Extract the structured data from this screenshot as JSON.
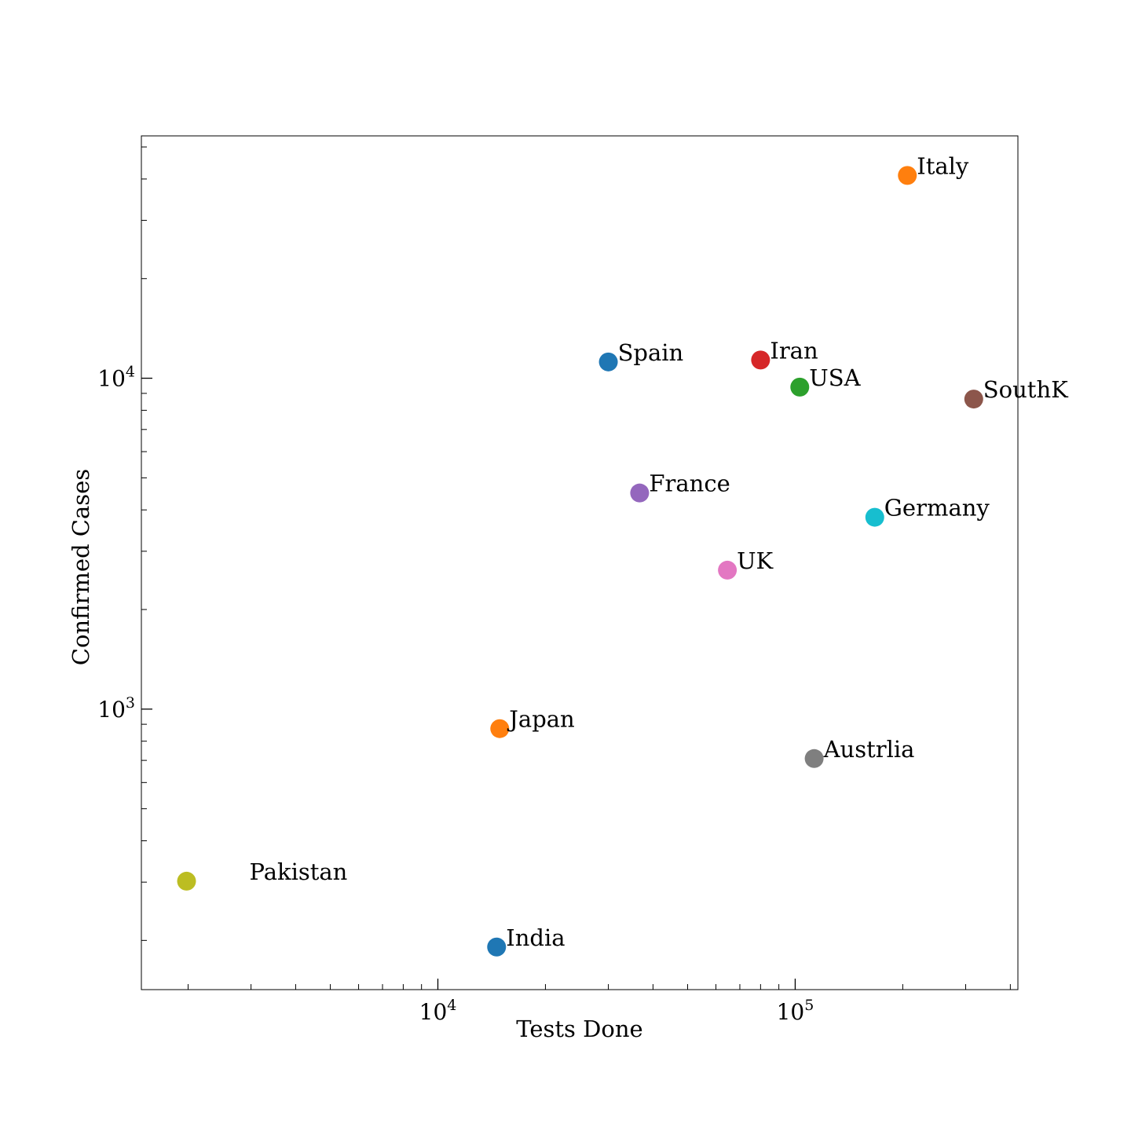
{
  "chart_data": {
    "type": "scatter",
    "title": "",
    "xlabel": "Tests Done",
    "ylabel": "Confirmed Cases",
    "xscale": "log",
    "yscale": "log",
    "xlim": [
      1480,
      420000
    ],
    "ylim": [
      142,
      54000
    ],
    "grid": false,
    "legend": "none",
    "x_ticks": [
      {
        "value": 10000,
        "base": "10",
        "exp": "4"
      },
      {
        "value": 100000,
        "base": "10",
        "exp": "5"
      }
    ],
    "y_ticks": [
      {
        "value": 1000,
        "base": "10",
        "exp": "3"
      },
      {
        "value": 10000,
        "base": "10",
        "exp": "4"
      }
    ],
    "points": [
      {
        "label": "Italy",
        "x": 206000,
        "y": 41000,
        "color": "#ff7f0e"
      },
      {
        "label": "Spain",
        "x": 30000,
        "y": 11200,
        "color": "#1f77b4"
      },
      {
        "label": "Iran",
        "x": 80000,
        "y": 11350,
        "color": "#d62728"
      },
      {
        "label": "USA",
        "x": 103000,
        "y": 9400,
        "color": "#2ca02c"
      },
      {
        "label": "SouthK",
        "x": 316000,
        "y": 8650,
        "color": "#8c564b"
      },
      {
        "label": "France",
        "x": 36700,
        "y": 4500,
        "color": "#9467bd"
      },
      {
        "label": "Germany",
        "x": 167000,
        "y": 3800,
        "color": "#17becf"
      },
      {
        "label": "UK",
        "x": 64600,
        "y": 2630,
        "color": "#e377c2"
      },
      {
        "label": "Japan",
        "x": 14900,
        "y": 873,
        "color": "#ff7f0e"
      },
      {
        "label": "Austrlia",
        "x": 113000,
        "y": 709,
        "color": "#7f7f7f"
      },
      {
        "label": "Pakistan",
        "x": 1980,
        "y": 302,
        "color": "#bcbd22"
      },
      {
        "label": "India",
        "x": 14600,
        "y": 191,
        "color": "#1f77b4"
      }
    ]
  }
}
